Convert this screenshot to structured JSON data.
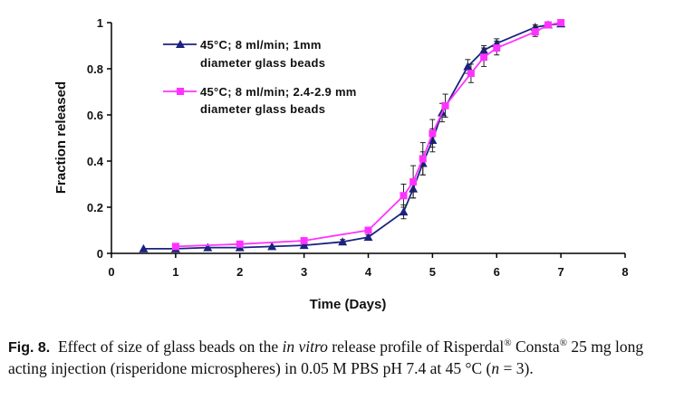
{
  "chart_data": {
    "type": "line",
    "title": "",
    "xlabel": "Time (Days)",
    "ylabel": "Fraction released",
    "xlim": [
      0,
      8
    ],
    "ylim": [
      0,
      1
    ],
    "xticks": [
      "0",
      "1",
      "2",
      "3",
      "4",
      "5",
      "6",
      "7",
      "8"
    ],
    "yticks": [
      "0",
      "0.2",
      "0.4",
      "0.6",
      "0.8",
      "1"
    ],
    "grid": false,
    "legend_position": "top-left",
    "series": [
      {
        "name": "45°C; 8 ml/min; 1mm diameter glass beads",
        "legend_line1": "45°C; 8 ml/min; 1mm",
        "legend_line2": "diameter glass beads",
        "color": "#1a237e",
        "marker": "triangle",
        "x": [
          0.5,
          1.0,
          1.5,
          2.0,
          2.5,
          3.0,
          3.6,
          4.0,
          4.55,
          4.7,
          4.85,
          5.0,
          5.15,
          5.55,
          5.8,
          6.0,
          6.6,
          6.8,
          7.0
        ],
        "values": [
          0.02,
          0.02,
          0.025,
          0.025,
          0.03,
          0.035,
          0.05,
          0.07,
          0.18,
          0.28,
          0.39,
          0.49,
          0.61,
          0.81,
          0.88,
          0.91,
          0.98,
          0.99,
          0.995
        ],
        "errors": [
          0,
          0,
          0,
          0,
          0,
          0,
          0.01,
          0.01,
          0.03,
          0.04,
          0.05,
          0.05,
          0.04,
          0.03,
          0.02,
          0.02,
          0.01,
          0.01,
          0.005
        ]
      },
      {
        "name": "45°C; 8 ml/min; 2.4-2.9 mm diameter glass beads",
        "legend_line1": "45°C; 8 ml/min; 2.4-2.9 mm",
        "legend_line2": "diameter glass beads",
        "color": "#ff33ff",
        "marker": "square",
        "x": [
          1.0,
          2.0,
          3.0,
          4.0,
          4.55,
          4.7,
          4.85,
          5.0,
          5.2,
          5.6,
          5.8,
          6.0,
          6.6,
          6.8,
          7.0
        ],
        "values": [
          0.03,
          0.04,
          0.055,
          0.1,
          0.25,
          0.31,
          0.41,
          0.52,
          0.64,
          0.78,
          0.85,
          0.89,
          0.96,
          0.99,
          1.0
        ],
        "errors": [
          0,
          0,
          0.005,
          0.01,
          0.05,
          0.07,
          0.07,
          0.06,
          0.05,
          0.04,
          0.04,
          0.03,
          0.02,
          0.01,
          0.005
        ]
      }
    ]
  },
  "caption": {
    "label": "Fig. 8.",
    "text_1": "Effect of size of glass beads on the ",
    "italic": "in vitro",
    "text_2": " release profile of Risperdal",
    "reg_1": "®",
    "text_3": " Consta",
    "reg_2": "®",
    "text_4": " 25 mg long acting injection (risperidone microspheres) in 0.05 M PBS pH 7.4 at 45 °C (",
    "n_italic": "n",
    "text_5": " = 3)."
  }
}
